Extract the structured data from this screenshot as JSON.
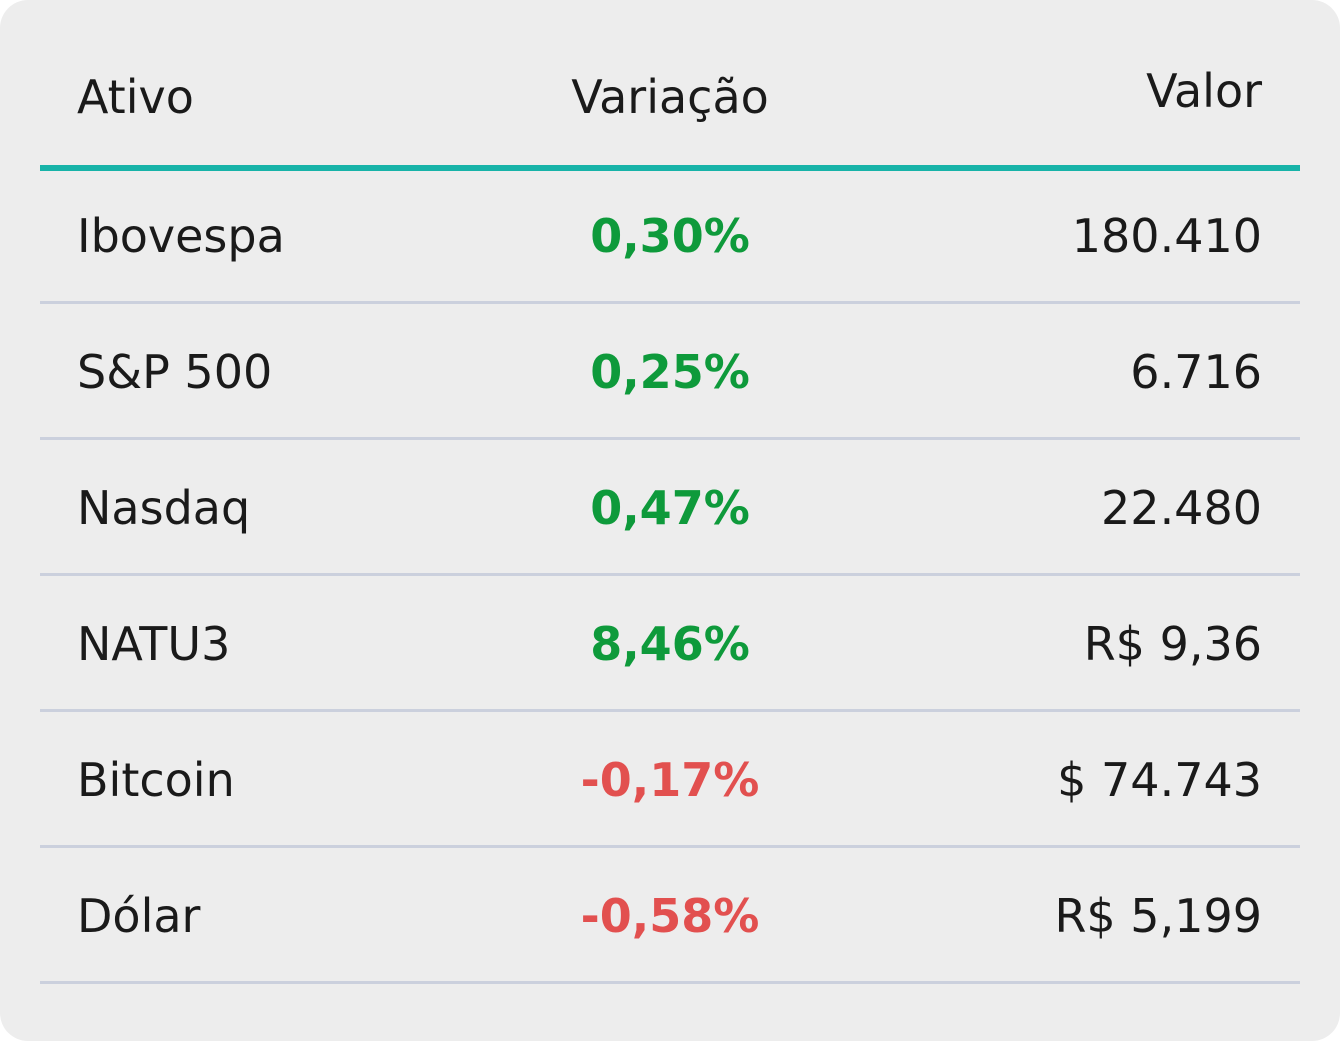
{
  "table": {
    "headers": {
      "asset": "Ativo",
      "change": "Variação",
      "value": "Valor"
    },
    "rows": [
      {
        "asset": "Ibovespa",
        "change": "0,30%",
        "value": "180.410",
        "direction": "up"
      },
      {
        "asset": "S&P 500",
        "change": "0,25%",
        "value": "6.716",
        "direction": "up"
      },
      {
        "asset": "Nasdaq",
        "change": "0,47%",
        "value": "22.480",
        "direction": "up"
      },
      {
        "asset": "NATU3",
        "change": "8,46%",
        "value": "R$ 9,36",
        "direction": "up"
      },
      {
        "asset": "Bitcoin",
        "change": "-0,17%",
        "value": "$ 74.743",
        "direction": "down"
      },
      {
        "asset": "Dólar",
        "change": "-0,58%",
        "value": "R$ 5,199",
        "direction": "down"
      }
    ]
  },
  "colors": {
    "background": "#ededed",
    "header_underline": "#17b3a8",
    "row_divider": "#cbd0dd",
    "positive": "#0e9a3b",
    "negative": "#e2504f",
    "text": "#1a1a1a"
  }
}
